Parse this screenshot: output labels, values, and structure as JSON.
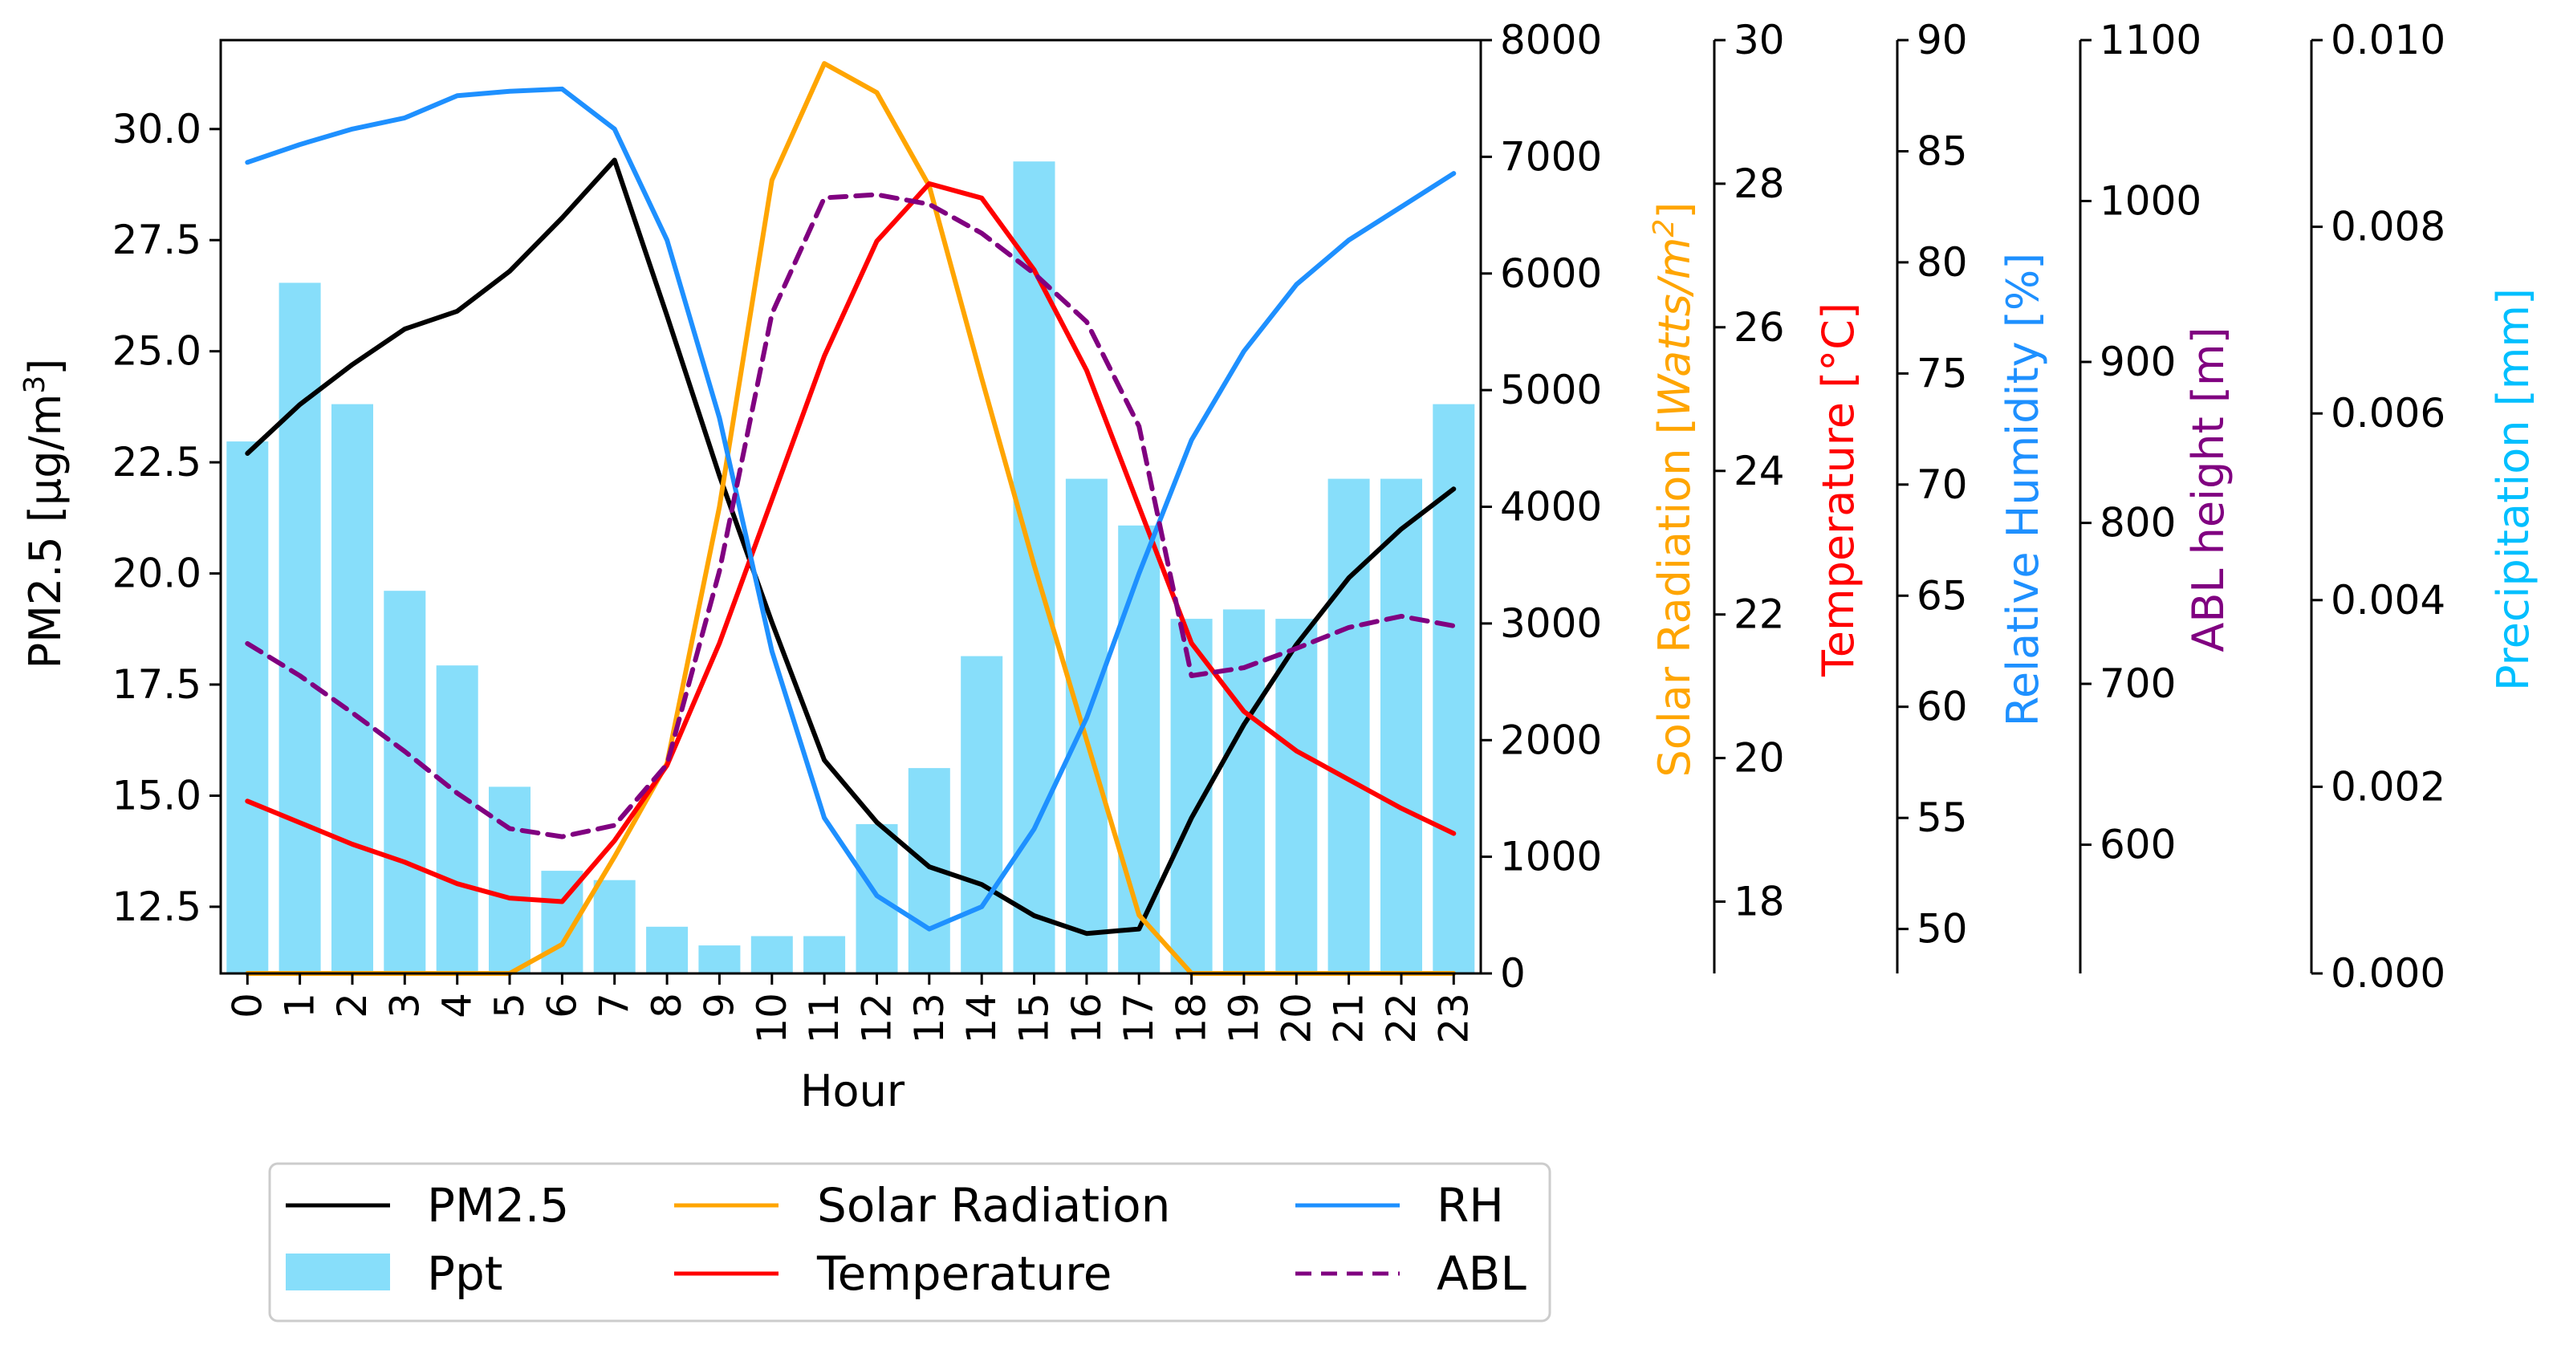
{
  "chart_data": {
    "type": "line",
    "xlabel": "Hour",
    "categories": [
      "0",
      "1",
      "2",
      "3",
      "4",
      "5",
      "6",
      "7",
      "8",
      "9",
      "10",
      "11",
      "12",
      "13",
      "14",
      "15",
      "16",
      "17",
      "18",
      "19",
      "20",
      "21",
      "22",
      "23"
    ],
    "axes": {
      "pm25": {
        "label": "PM2.5 [µg/m³]",
        "label_main": "PM2.5 [µg/m",
        "label_sup": "3",
        "label_end": "]",
        "ylim": [
          11.0,
          32.0
        ],
        "ticks": [
          "12.5",
          "15.0",
          "17.5",
          "20.0",
          "22.5",
          "25.0",
          "27.5",
          "30.0"
        ],
        "color": "#000000"
      },
      "solar": {
        "label": "Solar Radiation  [Watts/m²]",
        "label_main": "Solar Radiation  [",
        "label_italic": "Watts/m",
        "label_sup": "2",
        "label_end": "]",
        "ylim": [
          0,
          8000
        ],
        "ticks": [
          "0",
          "1000",
          "2000",
          "3000",
          "4000",
          "5000",
          "6000",
          "7000",
          "8000"
        ],
        "color": "#FFA500"
      },
      "temp": {
        "label": "Temperature [°C]",
        "ylim": [
          17.0,
          30.0
        ],
        "ticks": [
          "18",
          "20",
          "22",
          "24",
          "26",
          "28",
          "30"
        ],
        "color": "#FF0000"
      },
      "rh": {
        "label": "Relative Humidity [%]",
        "ylim": [
          48.0,
          90.0
        ],
        "ticks": [
          "50",
          "55",
          "60",
          "65",
          "70",
          "75",
          "80",
          "85",
          "90"
        ],
        "color": "#1E90FF"
      },
      "abl": {
        "label": "ABL height [m]",
        "ylim": [
          520,
          1100
        ],
        "ticks": [
          "600",
          "700",
          "800",
          "900",
          "1000",
          "1100"
        ],
        "color": "#800080"
      },
      "ppt": {
        "label": "Precipitation [mm]",
        "ylim": [
          0.0,
          0.01
        ],
        "ticks": [
          "0.000",
          "0.002",
          "0.004",
          "0.006",
          "0.008",
          "0.010"
        ],
        "color": "#00BFFF"
      }
    },
    "series": [
      {
        "name": "Ppt",
        "type": "bar",
        "axis": "ppt",
        "color": "#87DEFA",
        "values": [
          0.0057,
          0.0074,
          0.0061,
          0.0041,
          0.0033,
          0.002,
          0.0011,
          0.001,
          0.0005,
          0.0003,
          0.0004,
          0.0004,
          0.0016,
          0.0022,
          0.0034,
          0.0087,
          0.0053,
          0.0048,
          0.0038,
          0.0039,
          0.0038,
          0.0053,
          0.0053,
          0.0061
        ]
      },
      {
        "name": "PM2.5",
        "type": "line",
        "axis": "pm25",
        "color": "#000000",
        "dash": false,
        "values": [
          22.7,
          23.8,
          24.7,
          25.5,
          25.9,
          26.8,
          28.0,
          29.3,
          25.8,
          22.2,
          18.9,
          15.8,
          14.4,
          13.4,
          13.0,
          12.3,
          11.9,
          12.0,
          14.5,
          16.6,
          18.4,
          19.9,
          21.0,
          21.9
        ]
      },
      {
        "name": "Solar Radiation",
        "type": "line",
        "axis": "solar",
        "color": "#FFA500",
        "dash": false,
        "values": [
          0,
          0,
          0,
          0,
          0,
          0,
          250,
          1000,
          1800,
          4000,
          6800,
          7800,
          7550,
          6750,
          5100,
          3500,
          2000,
          500,
          0,
          0,
          0,
          0,
          0,
          0
        ]
      },
      {
        "name": "Temperature",
        "type": "line",
        "axis": "temp",
        "color": "#FF0000",
        "dash": false,
        "values": [
          19.4,
          19.1,
          18.8,
          18.55,
          18.25,
          18.05,
          18.0,
          18.85,
          19.9,
          21.6,
          23.6,
          25.6,
          27.2,
          28.0,
          27.8,
          26.8,
          25.4,
          23.5,
          21.6,
          20.65,
          20.1,
          19.7,
          19.3,
          18.95
        ]
      },
      {
        "name": "RH",
        "type": "line",
        "axis": "rh",
        "color": "#1E90FF",
        "dash": false,
        "values": [
          84.5,
          85.3,
          86.0,
          86.5,
          87.5,
          87.7,
          87.8,
          86.0,
          81.0,
          73.0,
          62.5,
          55.0,
          51.5,
          50.0,
          51.0,
          54.5,
          59.5,
          66.0,
          72.0,
          76.0,
          79.0,
          81.0,
          82.5,
          84.0
        ]
      },
      {
        "name": "ABL",
        "type": "line",
        "axis": "abl",
        "color": "#800080",
        "dash": true,
        "values": [
          725,
          705,
          682,
          658,
          632,
          610,
          605,
          612,
          650,
          770,
          930,
          1002,
          1004,
          998,
          980,
          955,
          925,
          860,
          705,
          710,
          722,
          735,
          742,
          736
        ]
      }
    ],
    "legend": {
      "position": "below",
      "entries": [
        "PM2.5",
        "Ppt",
        "Solar Radiation",
        "Temperature",
        "RH",
        "ABL"
      ]
    }
  }
}
